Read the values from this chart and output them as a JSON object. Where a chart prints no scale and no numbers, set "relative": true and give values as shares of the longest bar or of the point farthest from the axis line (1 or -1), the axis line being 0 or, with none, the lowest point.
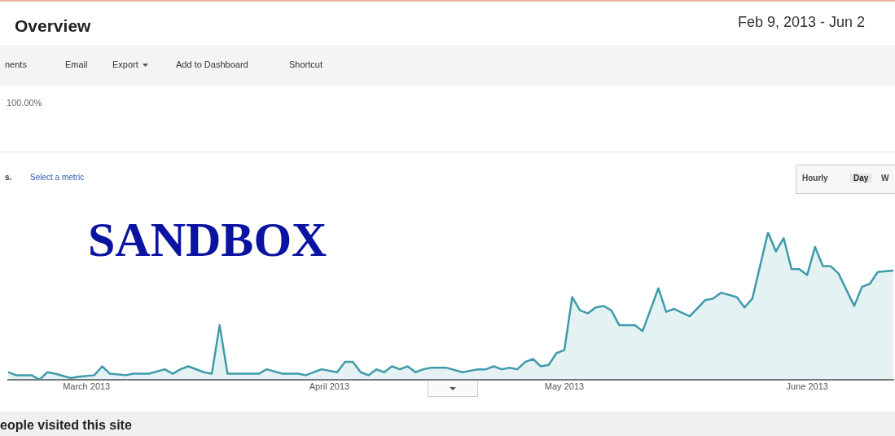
{
  "chart_data": {
    "type": "area",
    "title": "Overview",
    "subtitle": "Feb 9, 2013 - Jun 2",
    "annotations": [
      "nents",
      "Email",
      "Export",
      "Add to Dashboard",
      "Shortcut",
      "100.00%",
      "s.",
      "Select a metric",
      "Hourly",
      "Day",
      "W",
      "SANDBOX",
      "eople visited this site"
    ],
    "relative": true,
    "color": "#3f9bab",
    "legend": false,
    "xlim": [
      "2013-02-19",
      "2013-06-12"
    ],
    "xticks": [
      {
        "value": "2013-03-01",
        "label": "March 2013"
      },
      {
        "value": "2013-04-01",
        "label": "April 2013"
      },
      {
        "value": "2013-05-01",
        "label": "May 2013"
      },
      {
        "value": "2013-06-01",
        "label": "June 2013"
      }
    ],
    "x": [
      "2013-02-19",
      "2013-02-20",
      "2013-02-22",
      "2013-02-23",
      "2013-02-24",
      "2013-02-25",
      "2013-02-27",
      "2013-02-28",
      "2013-03-02",
      "2013-03-03",
      "2013-03-04",
      "2013-03-06",
      "2013-03-07",
      "2013-03-09",
      "2013-03-11",
      "2013-03-12",
      "2013-03-13",
      "2013-03-14",
      "2013-03-16",
      "2013-03-17",
      "2013-03-18",
      "2013-03-19",
      "2013-03-21",
      "2013-03-23",
      "2013-03-24",
      "2013-03-26",
      "2013-03-28",
      "2013-03-29",
      "2013-03-31",
      "2013-04-02",
      "2013-04-03",
      "2013-04-04",
      "2013-04-05",
      "2013-04-06",
      "2013-04-07",
      "2013-04-08",
      "2013-04-09",
      "2013-04-10",
      "2013-04-11",
      "2013-04-12",
      "2013-04-13",
      "2013-04-14",
      "2013-04-16",
      "2013-04-18",
      "2013-04-20",
      "2013-04-21",
      "2013-04-22",
      "2013-04-23",
      "2013-04-24",
      "2013-04-25",
      "2013-04-26",
      "2013-04-27",
      "2013-04-28",
      "2013-04-29",
      "2013-04-30",
      "2013-05-01",
      "2013-05-02",
      "2013-05-03",
      "2013-05-04",
      "2013-05-05",
      "2013-05-06",
      "2013-05-07",
      "2013-05-08",
      "2013-05-09",
      "2013-05-10",
      "2013-05-11",
      "2013-05-13",
      "2013-05-14",
      "2013-05-15",
      "2013-05-17",
      "2013-05-19",
      "2013-05-20",
      "2013-05-21",
      "2013-05-23",
      "2013-05-24",
      "2013-05-25",
      "2013-05-27",
      "2013-05-28",
      "2013-05-29",
      "2013-05-30",
      "2013-05-31",
      "2013-06-01",
      "2013-06-02",
      "2013-06-03",
      "2013-06-04",
      "2013-06-05",
      "2013-06-07",
      "2013-06-08",
      "2013-06-09",
      "2013-06-10",
      "2013-06-12"
    ],
    "values": [
      0.05,
      0.03,
      0.03,
      0,
      0.05,
      0.04,
      0.01,
      0.02,
      0.03,
      0.09,
      0.04,
      0.03,
      0.04,
      0.04,
      0.07,
      0.04,
      0.07,
      0.09,
      0.05,
      0.04,
      0.37,
      0.04,
      0.04,
      0.04,
      0.07,
      0.04,
      0.04,
      0.03,
      0.07,
      0.05,
      0.12,
      0.12,
      0.05,
      0.03,
      0.07,
      0.05,
      0.09,
      0.07,
      0.09,
      0.05,
      0.07,
      0.08,
      0.08,
      0.05,
      0.07,
      0.07,
      0.09,
      0.07,
      0.08,
      0.07,
      0.12,
      0.14,
      0.09,
      0.1,
      0.18,
      0.2,
      0.56,
      0.47,
      0.45,
      0.49,
      0.5,
      0.47,
      0.37,
      0.37,
      0.37,
      0.33,
      0.62,
      0.46,
      0.48,
      0.43,
      0.54,
      0.55,
      0.59,
      0.56,
      0.49,
      0.55,
      1,
      0.87,
      0.96,
      0.75,
      0.75,
      0.71,
      0.9,
      0.77,
      0.77,
      0.72,
      0.5,
      0.63,
      0.65,
      0.73,
      0.74
    ]
  }
}
